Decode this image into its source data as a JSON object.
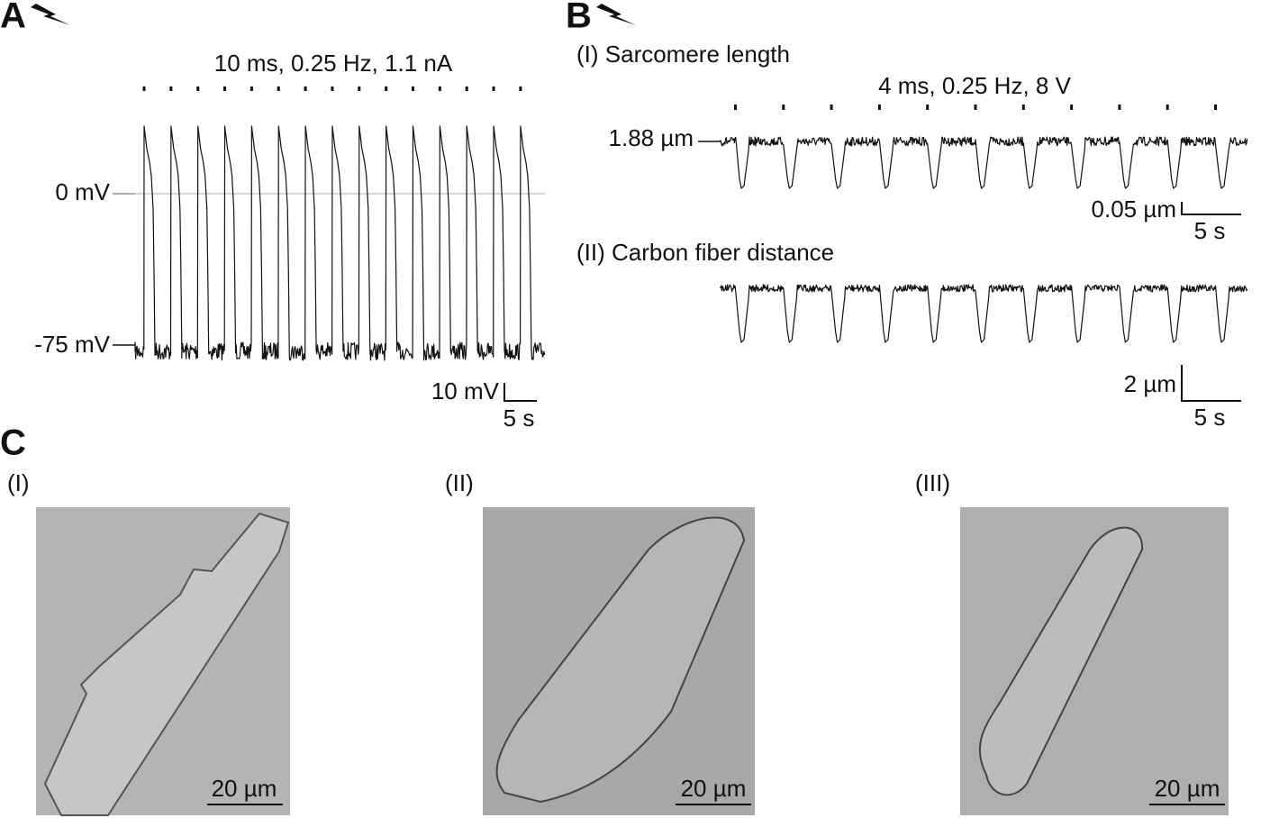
{
  "panel_a": {
    "label": "A",
    "stimulus": "10 ms, 0.25 Hz, 1.1 nA",
    "levels": [
      "0 mV",
      "-75 mV"
    ],
    "scale_bar": {
      "y": "10 mV",
      "x": "5 s"
    }
  },
  "panel_b": {
    "label": "B",
    "trace_1": {
      "title": "(I) Sarcomere length",
      "stimulus": "4 ms, 0.25 Hz, 8 V",
      "level": "1.88 µm",
      "scale_bar": {
        "y": "0.05 µm",
        "x": "5 s"
      }
    },
    "trace_2": {
      "title": "(II) Carbon fiber distance",
      "scale_bar": {
        "y": "2 µm",
        "x": "5 s"
      }
    }
  },
  "panel_c": {
    "label": "C",
    "images": [
      {
        "label": "(I)",
        "scale_bar": "20 µm"
      },
      {
        "label": "(II)",
        "scale_bar": "20 µm"
      },
      {
        "label": "(III)",
        "scale_bar": "20 µm"
      }
    ]
  }
}
